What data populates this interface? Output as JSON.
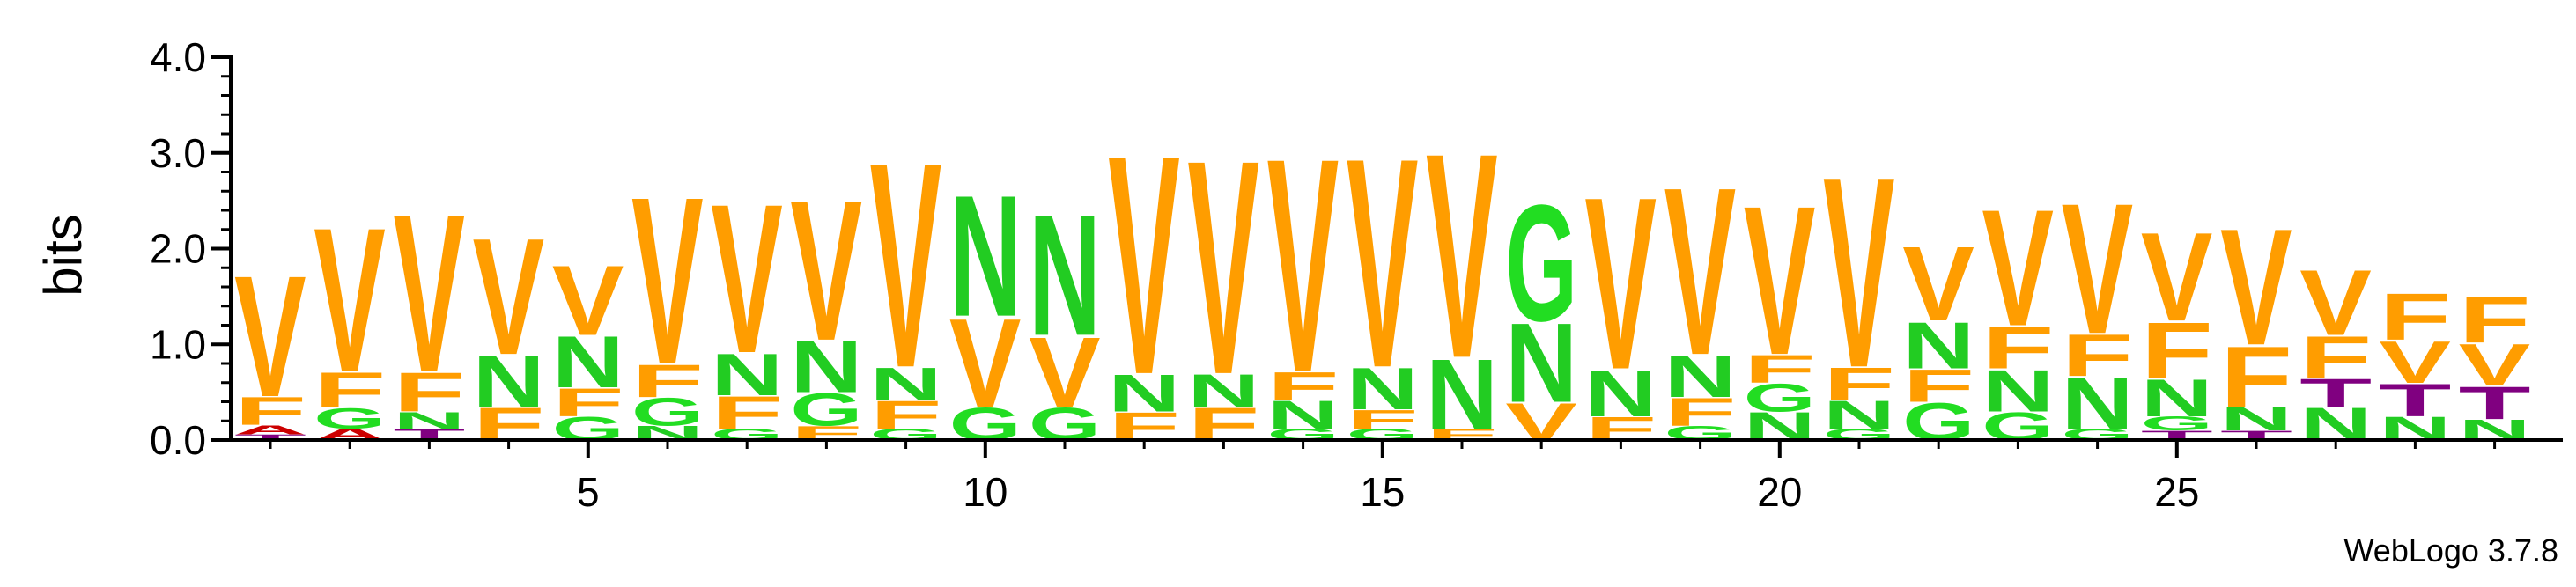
{
  "chart_data": {
    "type": "sequence-logo",
    "ylabel": "bits",
    "ylim": [
      0,
      4.0
    ],
    "yticks": [
      "0.0",
      "1.0",
      "2.0",
      "3.0",
      "4.0"
    ],
    "xticks": [
      "5",
      "10",
      "15",
      "20",
      "25"
    ],
    "xtick_positions": [
      5,
      10,
      15,
      20,
      25
    ],
    "credit": "WebLogo 3.7.8",
    "colors": {
      "V": "#ff9d00",
      "F": "#ff9d00",
      "N": "#22cc22",
      "G": "#22dd22",
      "T": "#800080",
      "A": "#cc0000"
    },
    "positions": [
      {
        "pos": 1,
        "stack": [
          [
            "T",
            0.06
          ],
          [
            "A",
            0.1
          ],
          [
            "F",
            0.3
          ],
          [
            "V",
            1.3
          ]
        ]
      },
      {
        "pos": 2,
        "stack": [
          [
            "A",
            0.12
          ],
          [
            "G",
            0.22
          ],
          [
            "F",
            0.38
          ],
          [
            "V",
            1.55
          ]
        ]
      },
      {
        "pos": 3,
        "stack": [
          [
            "T",
            0.12
          ],
          [
            "N",
            0.18
          ],
          [
            "F",
            0.42
          ],
          [
            "V",
            1.7
          ]
        ]
      },
      {
        "pos": 4,
        "stack": [
          [
            "F",
            0.35
          ],
          [
            "N",
            0.55
          ],
          [
            "V",
            1.25
          ]
        ]
      },
      {
        "pos": 5,
        "stack": [
          [
            "G",
            0.25
          ],
          [
            "F",
            0.3
          ],
          [
            "N",
            0.55
          ],
          [
            "V",
            0.75
          ]
        ]
      },
      {
        "pos": 6,
        "stack": [
          [
            "N",
            0.15
          ],
          [
            "G",
            0.3
          ],
          [
            "F",
            0.35
          ],
          [
            "V",
            1.8
          ]
        ]
      },
      {
        "pos": 7,
        "stack": [
          [
            "G",
            0.12
          ],
          [
            "F",
            0.35
          ],
          [
            "N",
            0.45
          ],
          [
            "V",
            1.6
          ]
        ]
      },
      {
        "pos": 8,
        "stack": [
          [
            "F",
            0.15
          ],
          [
            "G",
            0.35
          ],
          [
            "N",
            0.55
          ],
          [
            "V",
            1.5
          ]
        ]
      },
      {
        "pos": 9,
        "stack": [
          [
            "G",
            0.12
          ],
          [
            "F",
            0.3
          ],
          [
            "N",
            0.35
          ],
          [
            "V",
            2.2
          ]
        ]
      },
      {
        "pos": 10,
        "stack": [
          [
            "G",
            0.35
          ],
          [
            "V",
            0.95
          ],
          [
            "N",
            1.3
          ]
        ]
      },
      {
        "pos": 11,
        "stack": [
          [
            "G",
            0.35
          ],
          [
            "V",
            0.75
          ],
          [
            "N",
            1.3
          ]
        ]
      },
      {
        "pos": 12,
        "stack": [
          [
            "F",
            0.3
          ],
          [
            "N",
            0.4
          ],
          [
            "V",
            2.35
          ]
        ]
      },
      {
        "pos": 13,
        "stack": [
          [
            "F",
            0.35
          ],
          [
            "N",
            0.35
          ],
          [
            "V",
            2.3
          ]
        ]
      },
      {
        "pos": 14,
        "stack": [
          [
            "G",
            0.12
          ],
          [
            "N",
            0.3
          ],
          [
            "F",
            0.3
          ],
          [
            "V",
            2.3
          ]
        ]
      },
      {
        "pos": 15,
        "stack": [
          [
            "G",
            0.12
          ],
          [
            "F",
            0.2
          ],
          [
            "N",
            0.45
          ],
          [
            "V",
            2.25
          ]
        ]
      },
      {
        "pos": 16,
        "stack": [
          [
            "F",
            0.12
          ],
          [
            "N",
            0.75
          ],
          [
            "V",
            2.2
          ]
        ]
      },
      {
        "pos": 17,
        "stack": [
          [
            "V",
            0.4
          ],
          [
            "N",
            0.85
          ],
          [
            "G",
            1.25
          ]
        ]
      },
      {
        "pos": 18,
        "stack": [
          [
            "F",
            0.25
          ],
          [
            "N",
            0.5
          ],
          [
            "V",
            1.85
          ]
        ]
      },
      {
        "pos": 19,
        "stack": [
          [
            "G",
            0.15
          ],
          [
            "F",
            0.3
          ],
          [
            "N",
            0.45
          ],
          [
            "V",
            1.8
          ]
        ]
      },
      {
        "pos": 20,
        "stack": [
          [
            "N",
            0.3
          ],
          [
            "G",
            0.3
          ],
          [
            "F",
            0.3
          ],
          [
            "V",
            1.6
          ]
        ]
      },
      {
        "pos": 21,
        "stack": [
          [
            "G",
            0.12
          ],
          [
            "N",
            0.3
          ],
          [
            "F",
            0.35
          ],
          [
            "V",
            2.05
          ]
        ]
      },
      {
        "pos": 22,
        "stack": [
          [
            "G",
            0.4
          ],
          [
            "F",
            0.35
          ],
          [
            "N",
            0.5
          ],
          [
            "V",
            0.8
          ]
        ]
      },
      {
        "pos": 23,
        "stack": [
          [
            "G",
            0.3
          ],
          [
            "N",
            0.45
          ],
          [
            "F",
            0.45
          ],
          [
            "V",
            1.25
          ]
        ]
      },
      {
        "pos": 24,
        "stack": [
          [
            "G",
            0.12
          ],
          [
            "N",
            0.55
          ],
          [
            "F",
            0.45
          ],
          [
            "V",
            1.4
          ]
        ]
      },
      {
        "pos": 25,
        "stack": [
          [
            "T",
            0.1
          ],
          [
            "G",
            0.15
          ],
          [
            "N",
            0.4
          ],
          [
            "F",
            0.6
          ],
          [
            "V",
            0.95
          ]
        ]
      },
      {
        "pos": 26,
        "stack": [
          [
            "T",
            0.1
          ],
          [
            "N",
            0.25
          ],
          [
            "F",
            0.65
          ],
          [
            "V",
            1.25
          ]
        ]
      },
      {
        "pos": 27,
        "stack": [
          [
            "N",
            0.35
          ],
          [
            "T",
            0.3
          ],
          [
            "F",
            0.45
          ],
          [
            "V",
            0.7
          ]
        ]
      },
      {
        "pos": 28,
        "stack": [
          [
            "N",
            0.25
          ],
          [
            "T",
            0.35
          ],
          [
            "V",
            0.45
          ],
          [
            "F",
            0.5
          ]
        ]
      },
      {
        "pos": 29,
        "stack": [
          [
            "N",
            0.22
          ],
          [
            "T",
            0.35
          ],
          [
            "V",
            0.45
          ],
          [
            "F",
            0.5
          ]
        ]
      }
    ]
  }
}
